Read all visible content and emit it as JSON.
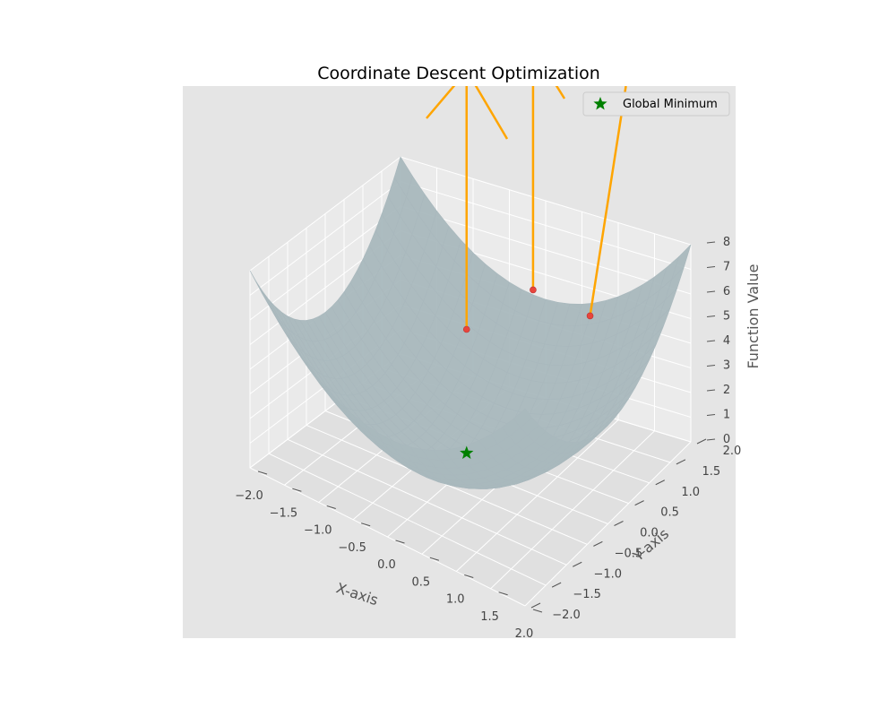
{
  "chart_data": {
    "type": "surface3d",
    "title": "Coordinate Descent Optimization",
    "xlabel": "X-axis",
    "ylabel": "Y-axis",
    "zlabel": "Function Value",
    "xlim": [
      -2,
      2
    ],
    "ylim": [
      -2,
      2
    ],
    "zlim": [
      0,
      8
    ],
    "x_ticks": [
      "−2.0",
      "−1.5",
      "−1.0",
      "−0.5",
      "0.0",
      "0.5",
      "1.0",
      "1.5",
      "2.0"
    ],
    "y_ticks": [
      "−2.0",
      "−1.5",
      "−1.0",
      "−0.5",
      "0.0",
      "0.5",
      "1.0",
      "1.5",
      "2.0"
    ],
    "z_ticks": [
      "0",
      "1",
      "2",
      "3",
      "4",
      "5",
      "6",
      "7",
      "8"
    ],
    "grid": true,
    "legend_position": "top-right",
    "legend": [
      {
        "label": "Global Minimum",
        "marker": "star",
        "color": "#008000"
      }
    ],
    "surface_color": "#a9b8bd",
    "path_color": "#ffa500",
    "point_color": "#e8453c",
    "global_minimum": {
      "x": 0,
      "y": 0,
      "z": 0
    },
    "visible_path_points": [
      {
        "x": 0.0,
        "y": 0.0,
        "z": 5.6
      },
      {
        "x": 0.6,
        "y": 0.6,
        "z": 7.0
      },
      {
        "x": 1.4,
        "y": 0.6,
        "z": 6.8
      }
    ]
  }
}
